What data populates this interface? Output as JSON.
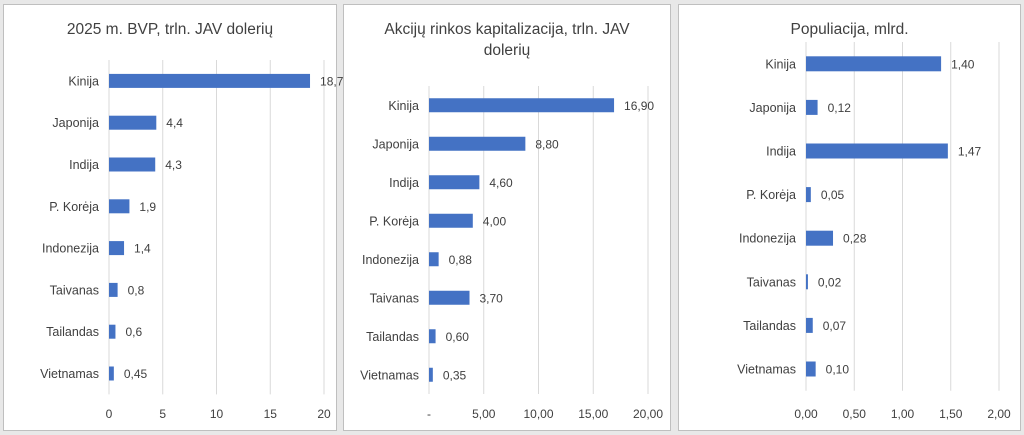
{
  "chart_data": [
    {
      "type": "bar",
      "orientation": "horizontal",
      "title": "2025 m. BVP, trln. JAV dolerių",
      "categories": [
        "Kinija",
        "Japonija",
        "Indija",
        "P. Korėja",
        "Indonezija",
        "Taivanas",
        "Tailandas",
        "Vietnamas"
      ],
      "values": [
        18.7,
        4.4,
        4.3,
        1.9,
        1.4,
        0.8,
        0.6,
        0.45
      ],
      "data_labels": [
        "18,7",
        "4,4",
        "4,3",
        "1,9",
        "1,4",
        "0,8",
        "0,6",
        "0,45"
      ],
      "xlim": [
        0,
        20
      ],
      "xticks": [
        0,
        5,
        10,
        15,
        20
      ],
      "xtick_labels": [
        "0",
        "5",
        "10",
        "15",
        "20"
      ],
      "grid": true,
      "bar_color": "#4472C4"
    },
    {
      "type": "bar",
      "orientation": "horizontal",
      "title": "Akcijų rinkos kapitalizacija, trln. JAV dolerių",
      "categories": [
        "Kinija",
        "Japonija",
        "Indija",
        "P. Korėja",
        "Indonezija",
        "Taivanas",
        "Tailandas",
        "Vietnamas"
      ],
      "values": [
        16.9,
        8.8,
        4.6,
        4.0,
        0.88,
        3.7,
        0.6,
        0.35
      ],
      "data_labels": [
        "16,90",
        "8,80",
        "4,60",
        "4,00",
        "0,88",
        "3,70",
        "0,60",
        "0,35"
      ],
      "xlim": [
        0,
        20
      ],
      "xticks": [
        0,
        5,
        10,
        15,
        20
      ],
      "xtick_labels": [
        "-",
        "5,00",
        "10,00",
        "15,00",
        "20,00"
      ],
      "grid": true,
      "bar_color": "#4472C4"
    },
    {
      "type": "bar",
      "orientation": "horizontal",
      "title": "Populiacija, mlrd.",
      "categories": [
        "Kinija",
        "Japonija",
        "Indija",
        "P. Korėja",
        "Indonezija",
        "Taivanas",
        "Tailandas",
        "Vietnamas"
      ],
      "values": [
        1.4,
        0.12,
        1.47,
        0.05,
        0.28,
        0.02,
        0.07,
        0.1
      ],
      "data_labels": [
        "1,40",
        "0,12",
        "1,47",
        "0,05",
        "0,28",
        "0,02",
        "0,07",
        "0,10"
      ],
      "xlim": [
        0,
        2
      ],
      "xticks": [
        0,
        0.5,
        1,
        1.5,
        2
      ],
      "xtick_labels": [
        "0,00",
        "0,50",
        "1,00",
        "1,50",
        "2,00"
      ],
      "grid": true,
      "bar_color": "#4472C4"
    }
  ]
}
